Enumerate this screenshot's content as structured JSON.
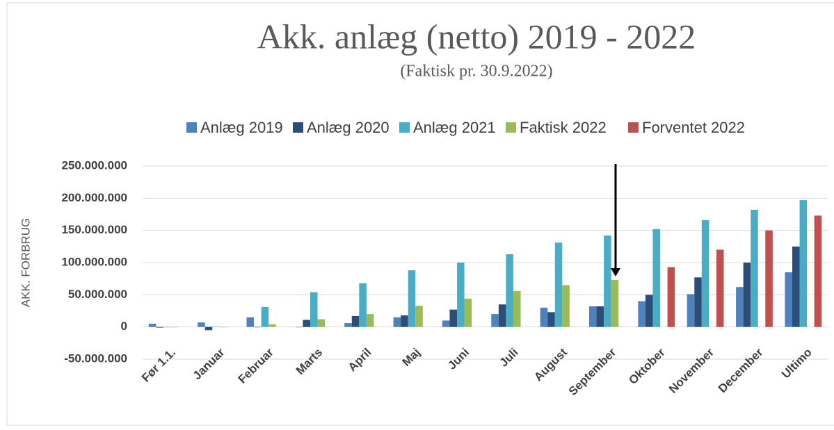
{
  "chart_data": {
    "type": "bar",
    "title": "Akk. anlæg (netto) 2019 - 2022",
    "subtitle": "(Faktisk pr. 30.9.2022)",
    "y_label": "AKK. FORBRUG",
    "categories": [
      "Før 1.1.",
      "Januar",
      "Februar",
      "Marts",
      "April",
      "Maj",
      "Juni",
      "Juli",
      "August",
      "September",
      "Oktober",
      "November",
      "December",
      "Ultimo"
    ],
    "series": [
      {
        "name": "Anlæg 2019",
        "color": "#4f81bd",
        "values": [
          5000000,
          7000000,
          15000000,
          0,
          6000000,
          15000000,
          10000000,
          20000000,
          30000000,
          32000000,
          40000000,
          51000000,
          62000000,
          85000000
        ]
      },
      {
        "name": "Anlæg 2020",
        "color": "#2c4d75",
        "values": [
          -1000000,
          -5000000,
          0,
          11000000,
          17000000,
          18000000,
          27000000,
          35000000,
          23000000,
          32000000,
          50000000,
          77000000,
          100000000,
          125000000
        ]
      },
      {
        "name": "Anlæg 2021",
        "color": "#4bacc6",
        "values": [
          0,
          500000,
          31000000,
          54000000,
          68000000,
          88000000,
          100000000,
          113000000,
          131000000,
          142000000,
          152000000,
          166000000,
          182000000,
          197000000
        ]
      },
      {
        "name": "Faktisk 2022",
        "color": "#9bbb59",
        "values": [
          0,
          0,
          4000000,
          12000000,
          20000000,
          33000000,
          44000000,
          56000000,
          65000000,
          73000000,
          null,
          null,
          null,
          null
        ]
      },
      {
        "name": "Forventet 2022",
        "color": "#c0504d",
        "values": [
          null,
          null,
          null,
          null,
          null,
          null,
          null,
          null,
          null,
          null,
          93000000,
          120000000,
          150000000,
          173000000
        ]
      }
    ],
    "ylim": [
      -50000000,
      250000000
    ],
    "yticks": [
      {
        "value": -50000000,
        "label": "-50.000.000"
      },
      0,
      {
        "value": 50000000,
        "label": "50.000.000"
      },
      {
        "value": 100000000,
        "label": "100.000.000"
      },
      {
        "value": 150000000,
        "label": "150.000.000"
      },
      {
        "value": 200000000,
        "label": "200.000.000"
      },
      {
        "value": 250000000,
        "label": "250.000.000"
      }
    ],
    "grid": true,
    "legend": "top"
  }
}
